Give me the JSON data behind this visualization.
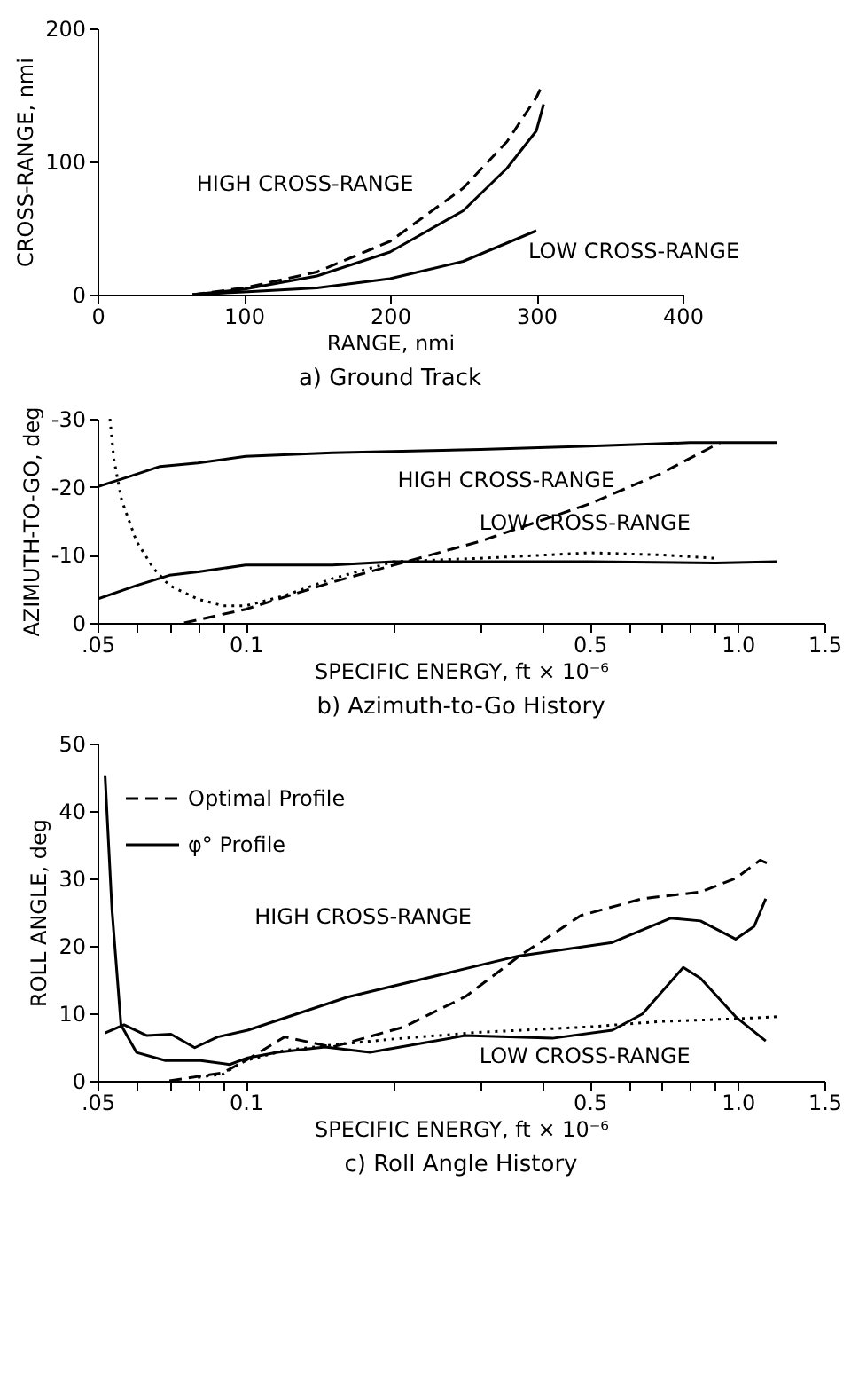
{
  "chart_data": [
    {
      "type": "line",
      "title": "a) Ground Track",
      "xlabel": "RANGE, nmi",
      "ylabel": "CROSS-RANGE, nmi",
      "xlim": [
        0,
        400
      ],
      "xticks": [
        0,
        100,
        200,
        300,
        400
      ],
      "ylim": [
        0,
        200
      ],
      "yticks": [
        0,
        100,
        200
      ],
      "grid": false,
      "annotations": [
        {
          "text": "HIGH CROSS-RANGE",
          "x": 250,
          "y": 70
        },
        {
          "text": "LOW CROSS-RANGE",
          "x": 280,
          "y": 33
        }
      ],
      "series": [
        {
          "color": "#000000",
          "line_style": "dashed",
          "x": [
            65,
            100,
            150,
            200,
            250,
            280,
            300,
            303
          ],
          "values": [
            0,
            5,
            17,
            40,
            80,
            115,
            148,
            155
          ]
        },
        {
          "color": "#000000",
          "line_style": "solid",
          "x": [
            65,
            100,
            150,
            200,
            250,
            280,
            300,
            305
          ],
          "values": [
            0,
            4,
            14,
            32,
            63,
            95,
            123,
            143
          ]
        },
        {
          "color": "#000000",
          "line_style": "solid",
          "x": [
            65,
            100,
            150,
            200,
            250,
            300
          ],
          "values": [
            0,
            2,
            5,
            12,
            25,
            48
          ]
        }
      ]
    },
    {
      "type": "line",
      "title": "b) Azimuth-to-Go History",
      "xlabel": "SPECIFIC ENERGY, ft × 10⁻⁶",
      "ylabel": "AZIMUTH-TO-GO, deg",
      "log": "x",
      "xlim": [
        0.05,
        1.5
      ],
      "xticks": [
        {
          "value": 0.05,
          "label": ".05"
        },
        {
          "value": 0.06,
          "label": null
        },
        {
          "value": 0.07,
          "label": null
        },
        {
          "value": 0.08,
          "label": null
        },
        {
          "value": 0.09,
          "label": null
        },
        0.1,
        {
          "value": 0.2,
          "label": null
        },
        {
          "value": 0.3,
          "label": null
        },
        {
          "value": 0.4,
          "label": null
        },
        0.5,
        {
          "value": 0.6,
          "label": null
        },
        {
          "value": 0.7,
          "label": null
        },
        {
          "value": 0.8,
          "label": null
        },
        {
          "value": 0.9,
          "label": null
        },
        {
          "value": 1,
          "label": "1.0"
        },
        1.5
      ],
      "ylim": [
        0,
        -30
      ],
      "yticks": [
        0,
        -10,
        -20,
        -30
      ],
      "grid": false,
      "annotations": [
        {
          "text": "HIGH CROSS-RANGE",
          "x": 0.6,
          "y": -21
        },
        {
          "text": "LOW CROSS-RANGE",
          "x": 0.9,
          "y": -9
        }
      ],
      "series": [
        {
          "color": "#000000",
          "line_style": "solid",
          "x": [
            0.05,
            0.058,
            0.067,
            0.08,
            0.1,
            0.15,
            0.3,
            0.5,
            0.8,
            1.2
          ],
          "values": [
            -20,
            -21.5,
            -23,
            -23.5,
            -24.5,
            -25,
            -25.5,
            -26,
            -26.5,
            -26.5
          ]
        },
        {
          "color": "#000000",
          "line_style": "dashed",
          "x": [
            0.075,
            0.1,
            0.15,
            0.2,
            0.3,
            0.5,
            0.7,
            0.92
          ],
          "values": [
            0,
            -2,
            -6,
            -8.5,
            -12,
            -17.5,
            -22,
            -26.5
          ]
        },
        {
          "color": "#000000",
          "line_style": "solid",
          "x": [
            0.05,
            0.06,
            0.07,
            0.08,
            0.1,
            0.15,
            0.2,
            0.5,
            0.9,
            1.2
          ],
          "values": [
            -3.5,
            -5.5,
            -7,
            -7.5,
            -8.5,
            -8.5,
            -9,
            -9,
            -8.8,
            -9
          ]
        },
        {
          "color": "#000000",
          "line_style": "dotted",
          "x": [
            0.053,
            0.054,
            0.056,
            0.06,
            0.065,
            0.07,
            0.08,
            0.09,
            0.1,
            0.12,
            0.15,
            0.2,
            0.3,
            0.5,
            0.7,
            0.9
          ],
          "values": [
            -30,
            -24,
            -18,
            -12,
            -8,
            -5.5,
            -3.5,
            -2.5,
            -2.5,
            -4,
            -6.5,
            -9,
            -9.5,
            -10.3,
            -10,
            -9.5
          ]
        }
      ]
    },
    {
      "type": "line",
      "title": "c) Roll Angle History",
      "xlabel": "SPECIFIC ENERGY, ft × 10⁻⁶",
      "ylabel": "ROLL ANGLE, deg",
      "log": "x",
      "legend": "top left",
      "xlim": [
        0.05,
        1.5
      ],
      "xticks": [
        {
          "value": 0.05,
          "label": ".05"
        },
        {
          "value": 0.06,
          "label": null
        },
        {
          "value": 0.07,
          "label": null
        },
        {
          "value": 0.08,
          "label": null
        },
        {
          "value": 0.09,
          "label": null
        },
        0.1,
        {
          "value": 0.2,
          "label": null
        },
        {
          "value": 0.3,
          "label": null
        },
        {
          "value": 0.4,
          "label": null
        },
        0.5,
        {
          "value": 0.6,
          "label": null
        },
        {
          "value": 0.7,
          "label": null
        },
        {
          "value": 0.8,
          "label": null
        },
        {
          "value": 0.9,
          "label": null
        },
        {
          "value": 1,
          "label": "1.0"
        },
        1.5
      ],
      "ylim": [
        0,
        50
      ],
      "yticks": [
        0,
        10,
        20,
        30,
        40,
        50
      ],
      "grid": false,
      "annotations": [
        {
          "text": "HIGH CROSS-RANGE",
          "x": 0.36,
          "y": 18.5
        },
        {
          "text": "LOW CROSS-RANGE",
          "x": 0.93,
          "y": 9.5
        }
      ],
      "series": [
        {
          "name": "Optimal Profile",
          "color": "#000000",
          "line_style": "dashed",
          "x": [
            0.07,
            0.09,
            0.1,
            0.12,
            0.15,
            0.21,
            0.28,
            0.36,
            0.48,
            0.64,
            0.84,
            0.99,
            1.11,
            1.17
          ],
          "values": [
            0,
            1.2,
            3,
            6.5,
            5,
            8,
            12.5,
            18.5,
            24.5,
            27,
            28,
            30,
            32.7,
            32
          ]
        },
        {
          "name": "φ° Profile",
          "color": "#000000",
          "line_style": "solid",
          "x": [
            0.0518,
            0.0566,
            0.063,
            0.0705,
            0.0788,
            0.0877,
            0.101,
            0.161,
            0.358,
            0.556,
            0.73,
            0.84,
            0.99,
            1.08,
            1.14
          ],
          "values": [
            7.1,
            8.3,
            6.7,
            6.9,
            4.9,
            6.5,
            7.5,
            12.4,
            18.5,
            20.5,
            24.1,
            23.7,
            21,
            22.9,
            27
          ]
        },
        {
          "color": "#000000",
          "line_style": "dotted",
          "x": [
            0.08,
            0.09,
            0.1,
            0.12,
            0.15,
            0.2,
            0.3,
            0.5,
            0.7,
            1.0,
            1.2
          ],
          "values": [
            0.5,
            1,
            3,
            4.5,
            5.3,
            6.2,
            7.2,
            8,
            8.8,
            9.2,
            9.5
          ]
        },
        {
          "color": "#000000",
          "line_style": "solid",
          "x": [
            0.0518,
            0.0535,
            0.0558,
            0.06,
            0.0687,
            0.081,
            0.0928,
            0.101,
            0.116,
            0.145,
            0.179,
            0.279,
            0.42,
            0.556,
            0.64,
            0.775,
            0.84,
            0.99,
            1.14
          ],
          "values": [
            45.3,
            25.4,
            8.3,
            4.2,
            3,
            3,
            2.4,
            3.4,
            4.2,
            5,
            4.2,
            6.7,
            6.3,
            7.5,
            9.9,
            16.8,
            15.2,
            9.5,
            5.9
          ]
        }
      ]
    }
  ]
}
